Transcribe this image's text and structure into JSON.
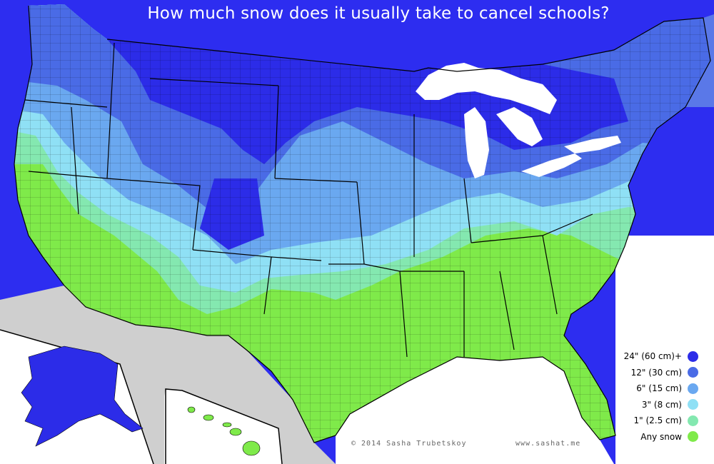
{
  "title": "How much snow does it usually take to cancel schools?",
  "legend": [
    {
      "label": "24\" (60 cm)+",
      "color": "#2c2ce8"
    },
    {
      "label": "12\" (30 cm)",
      "color": "#4a6be6"
    },
    {
      "label": "6\" (15 cm)",
      "color": "#6aa8f0"
    },
    {
      "label": "3\" (8 cm)",
      "color": "#8fe0f5"
    },
    {
      "label": "1\" (2.5 cm)",
      "color": "#84e8b0"
    },
    {
      "label": "Any snow",
      "color": "#7fea4a"
    }
  ],
  "credit": {
    "author": "© 2014 Sasha Trubetskoy",
    "website": "www.sashat.me"
  },
  "colors": {
    "water": "#2d2df0",
    "lake_white": "#ffffff",
    "neighbor_land": "#cfcfcf",
    "border": "#000000"
  }
}
